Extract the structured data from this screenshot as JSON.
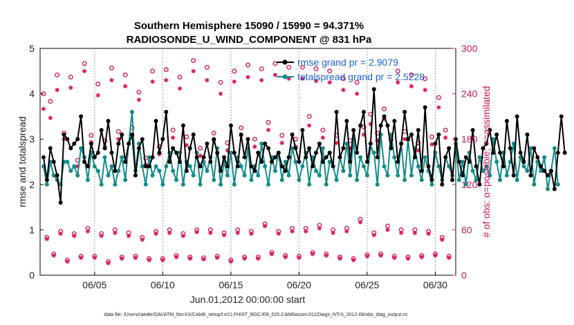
{
  "chart_data": {
    "type": "line",
    "title_line1": "Southern Hemisphere 15090 / 15990 = 94.371%",
    "title_line2": "RADIOSONDE_U_WIND_COMPONENT @ 831 hPa",
    "xlabel": "Jun.01,2012 00:00:00 start",
    "ylabel": "rmse and totalspread",
    "y2label": "# of obs: o=possible; ×=assimilated",
    "footnote": "data file: /Users/raeder/DAI/ATM_forcXX/CAM6_setup/f.e21.FHIST_BGC.f09_025.CAM6assim.011/Diags_NTrS_2012-06/obs_diag_output.nc",
    "xlim": [
      1,
      31.5
    ],
    "ylim": [
      0,
      5
    ],
    "y2lim": [
      0,
      300
    ],
    "x_ticks": [
      5,
      10,
      15,
      20,
      25,
      30
    ],
    "x_tick_labels": [
      "06/05",
      "06/10",
      "06/15",
      "06/20",
      "06/25",
      "06/30"
    ],
    "y_ticks": [
      0,
      1,
      2,
      3,
      4,
      5
    ],
    "y_tick_labels": [
      "0",
      "1",
      "2",
      "3",
      "4",
      "5"
    ],
    "y2_ticks": [
      0,
      60,
      120,
      180,
      240,
      300
    ],
    "y2_tick_labels": [
      "0",
      "60",
      "120",
      "180",
      "240",
      "300"
    ],
    "legend": [
      "rmse grand pr = 2.9079",
      "totalspread grand pr = 2.5228"
    ],
    "colors": {
      "rmse": "#000000",
      "spread": "#138b8b",
      "obs": "#d81b60",
      "legend_text": "#1a5fd6"
    },
    "x_start": 1.25,
    "x_step": 0.25,
    "series": [
      {
        "name": "rmse",
        "values": [
          2.6,
          2.1,
          2.8,
          2.5,
          2.2,
          1.6,
          3.1,
          3.0,
          2.8,
          2.9,
          3.0,
          3.5,
          2.5,
          2.4,
          2.9,
          2.6,
          2.7,
          3.2,
          2.8,
          3.4,
          2.7,
          2.3,
          2.9,
          3.1,
          2.5,
          2.9,
          3.1,
          2.2,
          2.8,
          3.0,
          2.4,
          2.4,
          2.6,
          3.4,
          2.7,
          3.0,
          3.6,
          2.5,
          2.8,
          2.7,
          2.5,
          3.3,
          2.3,
          2.8,
          3.1,
          2.6,
          2.4,
          2.6,
          2.9,
          2.5,
          3.0,
          2.7,
          2.3,
          2.6,
          2.4,
          3.3,
          2.7,
          2.4,
          3.1,
          2.6,
          3.0,
          2.4,
          2.3,
          2.7,
          2.5,
          2.9,
          2.8,
          2.5,
          2.6,
          2.7,
          2.4,
          2.3,
          2.6,
          3.1,
          2.8,
          2.5,
          3.2,
          2.6,
          2.8,
          2.4,
          2.7,
          2.9,
          2.5,
          2.6,
          2.7,
          2.4,
          3.6,
          2.6,
          2.8,
          3.4,
          2.5,
          3.2,
          2.7,
          3.3,
          3.6,
          2.5,
          2.9,
          4.1,
          2.6,
          3.3,
          3.5,
          3.3,
          2.8,
          3.4,
          2.5,
          2.9,
          3.6,
          3.0,
          3.1,
          2.6,
          3.2,
          2.3,
          3.7,
          2.4,
          2.1,
          2.9,
          3.1,
          2.0,
          2.6,
          2.8,
          2.1,
          3.0,
          2.5,
          2.2,
          2.6,
          2.5,
          3.2,
          2.4,
          2.0,
          2.8,
          2.9,
          3.2,
          2.7,
          3.1,
          2.7,
          2.4,
          3.4,
          2.8,
          2.2,
          3.5,
          2.7,
          2.5,
          3.1,
          2.2,
          2.8,
          2.6,
          2.4,
          2.3,
          2.2,
          2.3,
          1.9,
          2.7,
          3.5,
          2.7
        ]
      },
      {
        "name": "totalspread",
        "values": [
          2.4,
          2.0,
          2.5,
          2.2,
          2.1,
          2.0,
          2.5,
          2.5,
          2.3,
          2.4,
          2.2,
          2.8,
          2.6,
          2.1,
          2.7,
          2.4,
          2.3,
          2.0,
          2.6,
          2.2,
          2.4,
          2.0,
          2.3,
          2.6,
          2.1,
          2.9,
          3.6,
          2.3,
          2.9,
          2.4,
          2.0,
          2.6,
          2.2,
          2.4,
          2.3,
          2.0,
          2.4,
          2.7,
          2.3,
          2.1,
          2.7,
          2.0,
          2.5,
          2.4,
          2.2,
          2.7,
          2.0,
          2.5,
          2.3,
          2.6,
          2.1,
          2.8,
          2.0,
          2.5,
          2.2,
          2.7,
          2.0,
          2.6,
          2.4,
          2.2,
          2.8,
          2.1,
          2.4,
          2.2,
          2.9,
          2.4,
          2.0,
          2.6,
          2.3,
          2.7,
          2.1,
          2.5,
          2.2,
          2.8,
          2.5,
          2.1,
          2.4,
          2.7,
          2.0,
          2.6,
          2.3,
          2.2,
          2.8,
          2.0,
          2.5,
          2.4,
          2.1,
          2.6,
          2.3,
          2.9,
          2.2,
          3.0,
          2.1,
          2.6,
          2.4,
          2.2,
          2.8,
          2.7,
          2.0,
          3.1,
          2.4,
          2.2,
          3.1,
          2.6,
          2.2,
          2.9,
          2.1,
          3.0,
          2.2,
          2.8,
          2.4,
          2.1,
          2.6,
          2.3,
          2.0,
          2.7,
          2.4,
          2.1,
          2.6,
          2.4,
          2.2,
          2.9,
          2.1,
          2.5,
          2.0,
          2.7,
          2.3,
          2.1,
          2.6,
          2.3,
          2.4,
          2.2,
          3.0,
          2.5,
          2.1,
          2.7,
          2.2,
          2.5,
          2.9,
          2.1,
          2.6,
          2.4,
          2.3,
          2.8,
          2.0,
          2.5,
          2.3,
          2.6,
          1.9,
          2.3,
          2.8,
          2.0
        ]
      }
    ],
    "obs_possible": [
      {
        "x": 1.25,
        "v": 240
      },
      {
        "x": 1.5,
        "v": 50
      },
      {
        "x": 1.75,
        "v": 230
      },
      {
        "x": 2,
        "v": 28
      },
      {
        "x": 2.25,
        "v": 265
      },
      {
        "x": 2.5,
        "v": 58
      },
      {
        "x": 2.75,
        "v": 188
      },
      {
        "x": 3,
        "v": 20
      },
      {
        "x": 3.25,
        "v": 262
      },
      {
        "x": 3.5,
        "v": 55
      },
      {
        "x": 3.75,
        "v": 152
      },
      {
        "x": 4,
        "v": 25
      },
      {
        "x": 4.25,
        "v": 280
      },
      {
        "x": 4.5,
        "v": 62
      },
      {
        "x": 4.75,
        "v": 185
      },
      {
        "x": 5,
        "v": 25
      },
      {
        "x": 5.25,
        "v": 253
      },
      {
        "x": 5.5,
        "v": 55
      },
      {
        "x": 5.75,
        "v": 178
      },
      {
        "x": 6,
        "v": 18
      },
      {
        "x": 6.25,
        "v": 274
      },
      {
        "x": 6.5,
        "v": 60
      },
      {
        "x": 6.75,
        "v": 190
      },
      {
        "x": 7,
        "v": 24
      },
      {
        "x": 7.25,
        "v": 265
      },
      {
        "x": 7.5,
        "v": 56
      },
      {
        "x": 7.75,
        "v": 195
      },
      {
        "x": 8,
        "v": 25
      },
      {
        "x": 8.25,
        "v": 242
      },
      {
        "x": 8.5,
        "v": 50
      },
      {
        "x": 8.75,
        "v": 155
      },
      {
        "x": 9,
        "v": 22
      },
      {
        "x": 9.25,
        "v": 270
      },
      {
        "x": 9.5,
        "v": 58
      },
      {
        "x": 9.75,
        "v": 170
      },
      {
        "x": 10,
        "v": 22
      },
      {
        "x": 10.25,
        "v": 272
      },
      {
        "x": 10.5,
        "v": 60
      },
      {
        "x": 10.75,
        "v": 192
      },
      {
        "x": 11,
        "v": 26
      },
      {
        "x": 11.25,
        "v": 262
      },
      {
        "x": 11.5,
        "v": 55
      },
      {
        "x": 11.75,
        "v": 183
      },
      {
        "x": 12,
        "v": 24
      },
      {
        "x": 12.25,
        "v": 284
      },
      {
        "x": 12.5,
        "v": 60
      },
      {
        "x": 12.75,
        "v": 168
      },
      {
        "x": 13,
        "v": 23
      },
      {
        "x": 13.25,
        "v": 275
      },
      {
        "x": 13.5,
        "v": 60
      },
      {
        "x": 13.75,
        "v": 188
      },
      {
        "x": 14,
        "v": 25
      },
      {
        "x": 14.25,
        "v": 255
      },
      {
        "x": 14.5,
        "v": 56
      },
      {
        "x": 14.75,
        "v": 175
      },
      {
        "x": 15,
        "v": 20
      },
      {
        "x": 15.25,
        "v": 270
      },
      {
        "x": 15.5,
        "v": 60
      },
      {
        "x": 15.75,
        "v": 195
      },
      {
        "x": 16,
        "v": 24
      },
      {
        "x": 16.25,
        "v": 278
      },
      {
        "x": 16.5,
        "v": 58
      },
      {
        "x": 16.75,
        "v": 180
      },
      {
        "x": 17,
        "v": 24
      },
      {
        "x": 17.25,
        "v": 273
      },
      {
        "x": 17.5,
        "v": 68
      },
      {
        "x": 17.75,
        "v": 202
      },
      {
        "x": 18,
        "v": 30
      },
      {
        "x": 18.25,
        "v": 280
      },
      {
        "x": 18.5,
        "v": 58
      },
      {
        "x": 18.75,
        "v": 185
      },
      {
        "x": 19,
        "v": 26
      },
      {
        "x": 19.25,
        "v": 275
      },
      {
        "x": 19.5,
        "v": 62
      },
      {
        "x": 19.75,
        "v": 180
      },
      {
        "x": 20,
        "v": 25
      },
      {
        "x": 20.25,
        "v": 275
      },
      {
        "x": 20.5,
        "v": 62
      },
      {
        "x": 20.75,
        "v": 210
      },
      {
        "x": 21,
        "v": 30
      },
      {
        "x": 21.25,
        "v": 273
      },
      {
        "x": 21.5,
        "v": 66
      },
      {
        "x": 21.75,
        "v": 192
      },
      {
        "x": 22,
        "v": 28
      },
      {
        "x": 22.25,
        "v": 270
      },
      {
        "x": 22.5,
        "v": 60
      },
      {
        "x": 22.75,
        "v": 185
      },
      {
        "x": 23,
        "v": 24
      },
      {
        "x": 23.25,
        "v": 260
      },
      {
        "x": 23.5,
        "v": 62
      },
      {
        "x": 23.75,
        "v": 178
      },
      {
        "x": 24,
        "v": 22
      },
      {
        "x": 24.25,
        "v": 255
      },
      {
        "x": 24.5,
        "v": 74
      },
      {
        "x": 24.75,
        "v": 196
      },
      {
        "x": 25,
        "v": 27
      },
      {
        "x": 25.25,
        "v": 213
      },
      {
        "x": 25.5,
        "v": 56
      },
      {
        "x": 25.75,
        "v": 188
      },
      {
        "x": 26,
        "v": 28
      },
      {
        "x": 26.25,
        "v": 220
      },
      {
        "x": 26.5,
        "v": 65
      },
      {
        "x": 26.75,
        "v": 179
      },
      {
        "x": 27,
        "v": 25
      },
      {
        "x": 27.25,
        "v": 270
      },
      {
        "x": 27.5,
        "v": 60
      },
      {
        "x": 27.75,
        "v": 190
      },
      {
        "x": 28,
        "v": 24
      },
      {
        "x": 28.25,
        "v": 265
      },
      {
        "x": 28.5,
        "v": 60
      },
      {
        "x": 28.75,
        "v": 175
      },
      {
        "x": 29,
        "v": 26
      },
      {
        "x": 29.25,
        "v": 260
      },
      {
        "x": 29.5,
        "v": 58
      },
      {
        "x": 29.75,
        "v": 183
      },
      {
        "x": 30,
        "v": 28
      },
      {
        "x": 30.25,
        "v": 235
      },
      {
        "x": 30.5,
        "v": 50
      },
      {
        "x": 30.75,
        "v": 192
      },
      {
        "x": 31,
        "v": 25
      }
    ],
    "obs_assimilated": [
      {
        "x": 1.25,
        "v": 220
      },
      {
        "x": 1.5,
        "v": 48
      },
      {
        "x": 1.75,
        "v": 208
      },
      {
        "x": 2,
        "v": 26
      },
      {
        "x": 2.25,
        "v": 245
      },
      {
        "x": 2.5,
        "v": 55
      },
      {
        "x": 2.75,
        "v": 180
      },
      {
        "x": 3,
        "v": 18
      },
      {
        "x": 3.25,
        "v": 248
      },
      {
        "x": 3.5,
        "v": 52
      },
      {
        "x": 3.75,
        "v": 144
      },
      {
        "x": 4,
        "v": 23
      },
      {
        "x": 4.25,
        "v": 270
      },
      {
        "x": 4.5,
        "v": 58
      },
      {
        "x": 4.75,
        "v": 176
      },
      {
        "x": 5,
        "v": 23
      },
      {
        "x": 5.25,
        "v": 238
      },
      {
        "x": 5.5,
        "v": 52
      },
      {
        "x": 5.75,
        "v": 170
      },
      {
        "x": 6,
        "v": 16
      },
      {
        "x": 6.25,
        "v": 258
      },
      {
        "x": 6.5,
        "v": 56
      },
      {
        "x": 6.75,
        "v": 180
      },
      {
        "x": 7,
        "v": 22
      },
      {
        "x": 7.25,
        "v": 250
      },
      {
        "x": 7.5,
        "v": 52
      },
      {
        "x": 7.75,
        "v": 186
      },
      {
        "x": 8,
        "v": 23
      },
      {
        "x": 8.25,
        "v": 232
      },
      {
        "x": 8.5,
        "v": 47
      },
      {
        "x": 8.75,
        "v": 146
      },
      {
        "x": 9,
        "v": 20
      },
      {
        "x": 9.25,
        "v": 256
      },
      {
        "x": 9.5,
        "v": 55
      },
      {
        "x": 9.75,
        "v": 160
      },
      {
        "x": 10,
        "v": 20
      },
      {
        "x": 10.25,
        "v": 258
      },
      {
        "x": 10.5,
        "v": 56
      },
      {
        "x": 10.75,
        "v": 182
      },
      {
        "x": 11,
        "v": 24
      },
      {
        "x": 11.25,
        "v": 247
      },
      {
        "x": 11.5,
        "v": 52
      },
      {
        "x": 11.75,
        "v": 172
      },
      {
        "x": 12,
        "v": 22
      },
      {
        "x": 12.25,
        "v": 270
      },
      {
        "x": 12.5,
        "v": 57
      },
      {
        "x": 12.75,
        "v": 158
      },
      {
        "x": 13,
        "v": 21
      },
      {
        "x": 13.25,
        "v": 258
      },
      {
        "x": 13.5,
        "v": 56
      },
      {
        "x": 13.75,
        "v": 178
      },
      {
        "x": 14,
        "v": 23
      },
      {
        "x": 14.25,
        "v": 240
      },
      {
        "x": 14.5,
        "v": 53
      },
      {
        "x": 14.75,
        "v": 165
      },
      {
        "x": 15,
        "v": 18
      },
      {
        "x": 15.25,
        "v": 256
      },
      {
        "x": 15.5,
        "v": 56
      },
      {
        "x": 15.75,
        "v": 185
      },
      {
        "x": 16,
        "v": 22
      },
      {
        "x": 16.25,
        "v": 262
      },
      {
        "x": 16.5,
        "v": 55
      },
      {
        "x": 16.75,
        "v": 170
      },
      {
        "x": 17,
        "v": 22
      },
      {
        "x": 17.25,
        "v": 258
      },
      {
        "x": 17.5,
        "v": 65
      },
      {
        "x": 17.75,
        "v": 192
      },
      {
        "x": 18,
        "v": 28
      },
      {
        "x": 18.25,
        "v": 265
      },
      {
        "x": 18.5,
        "v": 55
      },
      {
        "x": 18.75,
        "v": 175
      },
      {
        "x": 19,
        "v": 24
      },
      {
        "x": 19.25,
        "v": 260
      },
      {
        "x": 19.5,
        "v": 58
      },
      {
        "x": 19.75,
        "v": 170
      },
      {
        "x": 20,
        "v": 23
      },
      {
        "x": 20.25,
        "v": 260
      },
      {
        "x": 20.5,
        "v": 58
      },
      {
        "x": 20.75,
        "v": 198
      },
      {
        "x": 21,
        "v": 28
      },
      {
        "x": 21.25,
        "v": 257
      },
      {
        "x": 21.5,
        "v": 62
      },
      {
        "x": 21.75,
        "v": 182
      },
      {
        "x": 22,
        "v": 26
      },
      {
        "x": 22.25,
        "v": 255
      },
      {
        "x": 22.5,
        "v": 56
      },
      {
        "x": 22.75,
        "v": 175
      },
      {
        "x": 23,
        "v": 22
      },
      {
        "x": 23.25,
        "v": 245
      },
      {
        "x": 23.5,
        "v": 58
      },
      {
        "x": 23.75,
        "v": 168
      },
      {
        "x": 24,
        "v": 20
      },
      {
        "x": 24.25,
        "v": 240
      },
      {
        "x": 24.5,
        "v": 70
      },
      {
        "x": 24.75,
        "v": 186
      },
      {
        "x": 25,
        "v": 25
      },
      {
        "x": 25.25,
        "v": 200
      },
      {
        "x": 25.5,
        "v": 53
      },
      {
        "x": 25.75,
        "v": 178
      },
      {
        "x": 26,
        "v": 26
      },
      {
        "x": 26.25,
        "v": 207
      },
      {
        "x": 26.5,
        "v": 60
      },
      {
        "x": 26.75,
        "v": 170
      },
      {
        "x": 27,
        "v": 23
      },
      {
        "x": 27.25,
        "v": 255
      },
      {
        "x": 27.5,
        "v": 56
      },
      {
        "x": 27.75,
        "v": 180
      },
      {
        "x": 28,
        "v": 22
      },
      {
        "x": 28.25,
        "v": 250
      },
      {
        "x": 28.5,
        "v": 56
      },
      {
        "x": 28.75,
        "v": 165
      },
      {
        "x": 29,
        "v": 24
      },
      {
        "x": 29.25,
        "v": 245
      },
      {
        "x": 29.5,
        "v": 55
      },
      {
        "x": 29.75,
        "v": 173
      },
      {
        "x": 30,
        "v": 26
      },
      {
        "x": 30.25,
        "v": 222
      },
      {
        "x": 30.5,
        "v": 47
      },
      {
        "x": 30.75,
        "v": 182
      },
      {
        "x": 31,
        "v": 23
      }
    ]
  }
}
